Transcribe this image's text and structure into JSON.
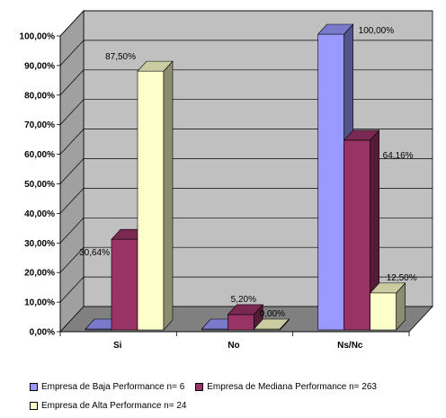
{
  "chart_data": {
    "type": "bar",
    "categories": [
      "Si",
      "No",
      "Ns/Nc"
    ],
    "series": [
      {
        "name": "Empresa de Baja Performance n= 6",
        "values": [
          0,
          0,
          100
        ],
        "labels": [
          "",
          "",
          "100,00%"
        ],
        "color": "#9999FF"
      },
      {
        "name": "Empresa de Mediana Performance n= 263",
        "values": [
          30.64,
          5.2,
          64.16
        ],
        "labels": [
          "30,64%",
          "5,20%",
          "64,16%"
        ],
        "color": "#993366"
      },
      {
        "name": "Empresa de Alta Performance n= 24",
        "values": [
          87.5,
          0,
          12.5
        ],
        "labels": [
          "87,50%",
          "0,00%",
          "12,50%"
        ],
        "color": "#FFFFCC"
      }
    ],
    "y_ticks": [
      "0,00%",
      "10,00%",
      "20,00%",
      "30,00%",
      "40,00%",
      "50,00%",
      "60,00%",
      "70,00%",
      "80,00%",
      "90,00%",
      "100,00%"
    ],
    "ylim": [
      0,
      100
    ],
    "grid": true,
    "legend_position": "bottom",
    "wall_color": "#C0C0C0"
  }
}
